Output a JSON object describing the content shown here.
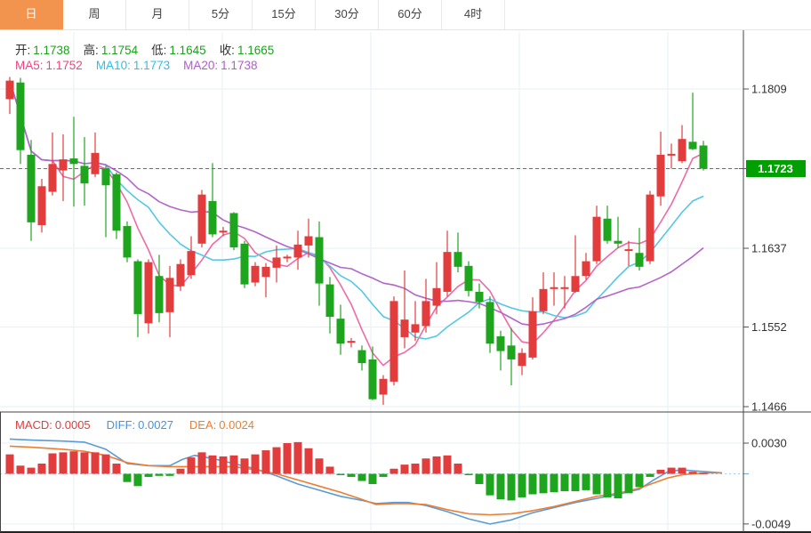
{
  "tabs": {
    "items": [
      {
        "key": "day",
        "label": "日",
        "active": true
      },
      {
        "key": "week",
        "label": "周",
        "active": false
      },
      {
        "key": "month",
        "label": "月",
        "active": false
      },
      {
        "key": "5min",
        "label": "5分",
        "active": false
      },
      {
        "key": "15min",
        "label": "15分",
        "active": false
      },
      {
        "key": "30min",
        "label": "30分",
        "active": false
      },
      {
        "key": "60min",
        "label": "60分",
        "active": false
      },
      {
        "key": "4hour",
        "label": "4时",
        "active": false
      }
    ]
  },
  "legend": {
    "ohlc": [
      {
        "label": "开:",
        "value": "1.1738"
      },
      {
        "label": "高:",
        "value": "1.1754"
      },
      {
        "label": "低:",
        "value": "1.1645"
      },
      {
        "label": "收:",
        "value": "1.1665"
      }
    ],
    "mas": [
      {
        "label": "MA5:",
        "value": "1.1752",
        "color": "#f0457c"
      },
      {
        "label": "MA10:",
        "value": "1.1773",
        "color": "#2ec0e8"
      },
      {
        "label": "MA20:",
        "value": "1.1738",
        "color": "#b45ad2"
      }
    ],
    "macd": [
      {
        "label": "MACD:",
        "value": "0.0005",
        "color": "#e23c3c"
      },
      {
        "label": "DIFF:",
        "value": "0.0027",
        "color": "#4a92dc"
      },
      {
        "label": "DEA:",
        "value": "0.0024",
        "color": "#f07e2a"
      }
    ]
  },
  "colors": {
    "up": "#e23c3c",
    "down": "#1ea51e",
    "ma5": "#ee6aa7",
    "ma10": "#54c7e6",
    "ma20": "#b365c9",
    "diff": "#5b9bd5",
    "dea": "#ed7d31",
    "tab_accent": "#f2934e",
    "badge": "#00a000",
    "axis_text": "#333333",
    "grid": "#e9eff6",
    "dashed_price": "#22a122",
    "zero_line": "#a8cfe8"
  },
  "chart_data": {
    "type": "candlestick",
    "panels": {
      "price": {
        "y_ticks": [
          "1.1809",
          "1.1723",
          "1.1637",
          "1.1552",
          "1.1466"
        ],
        "current_price": "1.1723",
        "ma_periods": [
          5,
          10,
          20
        ],
        "candles": [
          [
            1.1798,
            1.1822,
            1.1782,
            1.1818
          ],
          [
            1.1816,
            1.1821,
            1.1728,
            1.1743
          ],
          [
            1.1738,
            1.1754,
            1.1645,
            1.1665
          ],
          [
            1.1662,
            1.1712,
            1.1654,
            1.1704
          ],
          [
            1.1698,
            1.1762,
            1.1694,
            1.1728
          ],
          [
            1.1721,
            1.176,
            1.1688,
            1.1733
          ],
          [
            1.1734,
            1.1779,
            1.1682,
            1.1728
          ],
          [
            1.1726,
            1.1757,
            1.1683,
            1.1707
          ],
          [
            1.1717,
            1.1762,
            1.1714,
            1.174
          ],
          [
            1.1723,
            1.1726,
            1.1649,
            1.1705
          ],
          [
            1.1717,
            1.1719,
            1.1647,
            1.1656
          ],
          [
            1.1661,
            1.1666,
            1.1622,
            1.1627
          ],
          [
            1.1623,
            1.1625,
            1.1541,
            1.1566
          ],
          [
            1.1556,
            1.1625,
            1.1545,
            1.1622
          ],
          [
            1.1607,
            1.163,
            1.1557,
            1.1567
          ],
          [
            1.1568,
            1.1618,
            1.1541,
            1.1605
          ],
          [
            1.1596,
            1.1625,
            1.1591,
            1.162
          ],
          [
            1.1608,
            1.165,
            1.1604,
            1.1634
          ],
          [
            1.1642,
            1.17,
            1.1638,
            1.1695
          ],
          [
            1.1688,
            1.1729,
            1.1649,
            1.1652
          ],
          [
            1.1655,
            1.166,
            1.165,
            1.1655
          ],
          [
            1.1675,
            1.1676,
            1.1635,
            1.1638
          ],
          [
            1.1642,
            1.1645,
            1.1594,
            1.1598
          ],
          [
            1.16,
            1.1622,
            1.1596,
            1.1618
          ],
          [
            1.1606,
            1.1621,
            1.1584,
            1.1617
          ],
          [
            1.1616,
            1.164,
            1.16,
            1.1627
          ],
          [
            1.1627,
            1.163,
            1.1622,
            1.1627
          ],
          [
            1.1627,
            1.1656,
            1.1614,
            1.1641
          ],
          [
            1.164,
            1.1669,
            1.1627,
            1.165
          ],
          [
            1.1649,
            1.1666,
            1.1575,
            1.1599
          ],
          [
            1.1598,
            1.1606,
            1.1545,
            1.1563
          ],
          [
            1.1561,
            1.1576,
            1.1522,
            1.1534
          ],
          [
            1.1536,
            1.154,
            1.153,
            1.1536
          ],
          [
            1.1527,
            1.1532,
            1.1505,
            1.1513
          ],
          [
            1.1517,
            1.1531,
            1.1473,
            1.1474
          ],
          [
            1.1479,
            1.15,
            1.1468,
            1.1496
          ],
          [
            1.1493,
            1.1585,
            1.1489,
            1.158
          ],
          [
            1.1541,
            1.1613,
            1.1529,
            1.156
          ],
          [
            1.1546,
            1.158,
            1.1537,
            1.1555
          ],
          [
            1.1553,
            1.1604,
            1.1546,
            1.158
          ],
          [
            1.1575,
            1.1622,
            1.1566,
            1.1594
          ],
          [
            1.159,
            1.1656,
            1.1585,
            1.1633
          ],
          [
            1.1633,
            1.1654,
            1.1611,
            1.1617
          ],
          [
            1.1618,
            1.1623,
            1.1585,
            1.1591
          ],
          [
            1.159,
            1.1599,
            1.1572,
            1.1579
          ],
          [
            1.1579,
            1.1585,
            1.1524,
            1.1534
          ],
          [
            1.1542,
            1.1548,
            1.1505,
            1.1526
          ],
          [
            1.1532,
            1.1551,
            1.1489,
            1.1517
          ],
          [
            1.151,
            1.1529,
            1.15,
            1.1524
          ],
          [
            1.1519,
            1.1584,
            1.1517,
            1.1569
          ],
          [
            1.1569,
            1.1611,
            1.1566,
            1.1593
          ],
          [
            1.1594,
            1.1611,
            1.1575,
            1.1594
          ],
          [
            1.1594,
            1.1607,
            1.1572,
            1.1594
          ],
          [
            1.159,
            1.1651,
            1.1589,
            1.1607
          ],
          [
            1.1607,
            1.1632,
            1.1603,
            1.1623
          ],
          [
            1.1623,
            1.1683,
            1.162,
            1.1671
          ],
          [
            1.1669,
            1.1683,
            1.1642,
            1.1645
          ],
          [
            1.1645,
            1.1671,
            1.1637,
            1.1642
          ],
          [
            1.1635,
            1.1645,
            1.1618,
            1.1635
          ],
          [
            1.1632,
            1.1659,
            1.1613,
            1.1617
          ],
          [
            1.1623,
            1.1699,
            1.162,
            1.1695
          ],
          [
            1.1693,
            1.1763,
            1.1683,
            1.1738
          ],
          [
            1.1738,
            1.175,
            1.1723,
            1.1738
          ],
          [
            1.1731,
            1.177,
            1.1729,
            1.1755
          ],
          [
            1.1752,
            1.1805,
            1.1743,
            1.1744
          ],
          [
            1.1748,
            1.1753,
            1.1721,
            1.1723
          ]
        ]
      },
      "macd": {
        "y_ticks": [
          "0.0030",
          "-0.0049"
        ],
        "histogram_1e4": [
          19,
          8,
          6,
          10,
          20,
          21,
          22,
          21,
          21,
          19,
          10,
          -8,
          -12,
          -3,
          -2,
          -2,
          5,
          16,
          21,
          18,
          17,
          18,
          15,
          19,
          23,
          26,
          30,
          31,
          25,
          15,
          7,
          -1,
          -3,
          -7,
          -10,
          -3,
          5,
          9,
          10,
          15,
          17,
          18,
          10,
          -1,
          -10,
          -21,
          -25,
          -26,
          -23,
          -20,
          -19,
          -18,
          -17,
          -17,
          -16,
          -20,
          -23,
          -24,
          -19,
          -13,
          -3,
          4,
          6,
          6,
          2,
          1
        ],
        "diff_line_1e4": [
          [
            11,
            34
          ],
          [
            35,
            33
          ],
          [
            71,
            32
          ],
          [
            95,
            31
          ],
          [
            119,
            24
          ],
          [
            143,
            10
          ],
          [
            167,
            8
          ],
          [
            191,
            8
          ],
          [
            205,
            14
          ],
          [
            219,
            18
          ],
          [
            239,
            15
          ],
          [
            263,
            10
          ],
          [
            287,
            5
          ],
          [
            311,
            -2
          ],
          [
            335,
            -10
          ],
          [
            359,
            -16
          ],
          [
            383,
            -22
          ],
          [
            407,
            -26
          ],
          [
            423,
            -29
          ],
          [
            443,
            -28
          ],
          [
            459,
            -28
          ],
          [
            479,
            -31
          ],
          [
            503,
            -37
          ],
          [
            527,
            -44
          ],
          [
            551,
            -49
          ],
          [
            575,
            -45
          ],
          [
            599,
            -38
          ],
          [
            623,
            -33
          ],
          [
            647,
            -28
          ],
          [
            671,
            -24
          ],
          [
            695,
            -20
          ],
          [
            719,
            -15
          ],
          [
            735,
            -6
          ],
          [
            751,
            2
          ],
          [
            767,
            4
          ],
          [
            779,
            3
          ],
          [
            795,
            2
          ],
          [
            812,
            1
          ]
        ],
        "dea_line_1e4": [
          [
            11,
            27
          ],
          [
            35,
            26
          ],
          [
            71,
            24
          ],
          [
            95,
            22
          ],
          [
            119,
            18
          ],
          [
            143,
            11
          ],
          [
            167,
            8
          ],
          [
            191,
            7
          ],
          [
            215,
            7
          ],
          [
            239,
            7
          ],
          [
            263,
            7
          ],
          [
            287,
            4
          ],
          [
            311,
            0
          ],
          [
            335,
            -6
          ],
          [
            359,
            -12
          ],
          [
            383,
            -18
          ],
          [
            407,
            -25
          ],
          [
            423,
            -30
          ],
          [
            443,
            -29
          ],
          [
            459,
            -29
          ],
          [
            479,
            -30
          ],
          [
            503,
            -35
          ],
          [
            527,
            -39
          ],
          [
            551,
            -40
          ],
          [
            575,
            -39
          ],
          [
            599,
            -36
          ],
          [
            623,
            -32
          ],
          [
            647,
            -27
          ],
          [
            671,
            -22
          ],
          [
            695,
            -19
          ],
          [
            719,
            -14
          ],
          [
            735,
            -9
          ],
          [
            751,
            -4
          ],
          [
            767,
            -1
          ],
          [
            779,
            0
          ],
          [
            795,
            1
          ],
          [
            812,
            1
          ]
        ]
      }
    }
  }
}
